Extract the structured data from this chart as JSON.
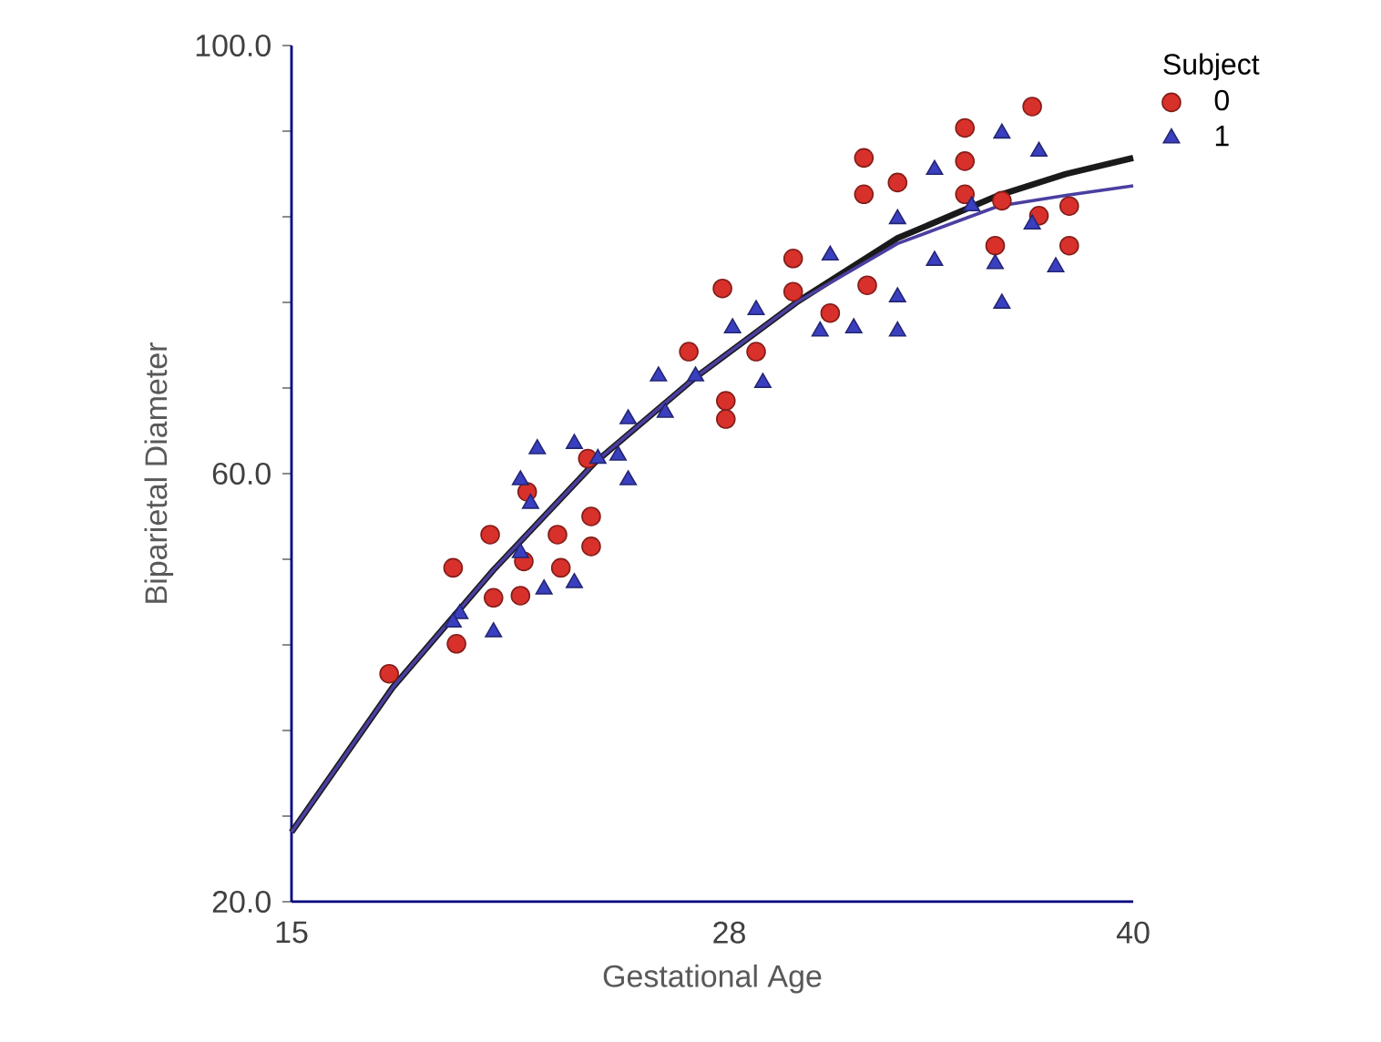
{
  "chart_data": {
    "type": "scatter",
    "xlabel": "Gestational Age",
    "ylabel": "Biparietal Diameter",
    "legend_title": "Subject",
    "legend": "top right",
    "xlim": [
      15,
      40
    ],
    "ylim": [
      20,
      100
    ],
    "xticks": [
      15,
      28,
      40
    ],
    "yticks": [
      {
        "value": 20,
        "label": "20.0"
      },
      {
        "value": 28,
        "label": null
      },
      {
        "value": 36,
        "label": null
      },
      {
        "value": 44,
        "label": null
      },
      {
        "value": 52,
        "label": null
      },
      {
        "value": 60,
        "label": "60.0"
      },
      {
        "value": 68,
        "label": null
      },
      {
        "value": 76,
        "label": null
      },
      {
        "value": 84,
        "label": null
      },
      {
        "value": 92,
        "label": null
      },
      {
        "value": 100,
        "label": "100.0"
      }
    ],
    "series": [
      {
        "type": "line",
        "color": "#1a1a1a",
        "x": [
          15,
          18,
          21,
          24,
          27,
          30,
          33,
          36,
          38,
          40
        ],
        "values": [
          26.5,
          40,
          51,
          61,
          69,
          76,
          82,
          86,
          88,
          89.5
        ]
      },
      {
        "type": "line",
        "color": "#4a3fa0",
        "x": [
          15,
          18,
          21,
          24,
          27,
          30,
          33,
          36,
          38,
          40
        ],
        "values": [
          26.5,
          40,
          51,
          61,
          69,
          76,
          81.5,
          85,
          86,
          86.9
        ]
      },
      {
        "name": "0",
        "color": "#d8302a",
        "marker": "circle",
        "x": [
          37.0,
          35.0,
          35.0,
          32.0,
          32.0,
          33.0,
          35.9,
          38.1,
          38.1,
          37.2,
          29.9,
          29.9,
          31.0,
          32.1,
          27.8,
          27.9,
          27.9,
          28.8,
          26.8,
          35.0,
          36.1,
          17.9,
          19.9,
          19.8,
          21.0,
          21.8,
          21.9,
          23.0,
          22.9,
          23.9,
          23.9,
          22.0,
          20.9,
          23.8
        ],
        "values": [
          94.3,
          92.3,
          89.2,
          89.5,
          86.1,
          87.2,
          81.3,
          81.3,
          85.0,
          84.1,
          80.1,
          77.0,
          75.0,
          77.6,
          77.3,
          66.8,
          65.1,
          71.4,
          71.4,
          86.1,
          85.5,
          41.3,
          44.1,
          51.2,
          48.4,
          48.6,
          51.8,
          51.2,
          54.3,
          53.2,
          56.0,
          58.3,
          54.3,
          61.4
        ]
      },
      {
        "name": "1",
        "color": "#3a3fc0",
        "marker": "triangle",
        "x": [
          36.1,
          37.2,
          34.1,
          33.0,
          34.1,
          36.1,
          35.9,
          37.7,
          37.0,
          35.2,
          31.7,
          33.0,
          30.7,
          33.0,
          31.0,
          28.8,
          28.1,
          29.0,
          27.0,
          25.9,
          25.0,
          26.1,
          24.7,
          25.0,
          22.3,
          23.4,
          21.8,
          20.0,
          21.0,
          19.8,
          22.1,
          22.5,
          23.4,
          24.1,
          21.8
        ],
        "values": [
          91.8,
          90.1,
          88.4,
          83.8,
          79.9,
          75.9,
          79.6,
          79.3,
          83.3,
          85.0,
          73.6,
          73.3,
          73.3,
          76.5,
          80.4,
          75.3,
          73.6,
          68.5,
          69.1,
          69.1,
          65.1,
          65.7,
          61.7,
          59.4,
          62.3,
          62.8,
          59.4,
          46.9,
          45.2,
          46.1,
          57.2,
          49.2,
          49.8,
          61.4,
          52.6
        ]
      }
    ]
  }
}
